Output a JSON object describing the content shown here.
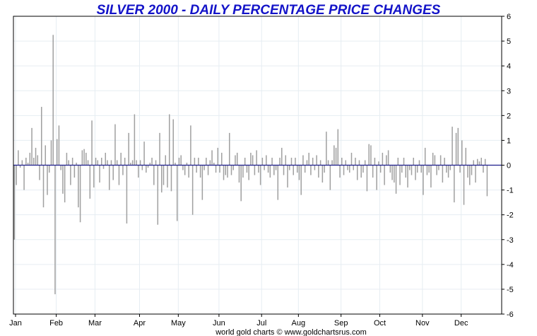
{
  "chart_data": {
    "type": "bar",
    "title": "SILVER 2000 - DAILY PERCENTAGE PRICE CHANGES",
    "credit": "world gold charts © www.goldchartsrus.com",
    "xlabel": "",
    "ylabel": "",
    "ylim": [
      -6,
      6
    ],
    "yticks": [
      6,
      5,
      4,
      3,
      2,
      1,
      0,
      -1,
      -2,
      -3,
      -4,
      -5,
      -6
    ],
    "xlim": [
      0,
      252
    ],
    "months": [
      {
        "label": "Jan",
        "start": 0
      },
      {
        "label": "Feb",
        "start": 21
      },
      {
        "label": "Mar",
        "start": 41
      },
      {
        "label": "Apr",
        "start": 64
      },
      {
        "label": "May",
        "start": 84
      },
      {
        "label": "Jun",
        "start": 105
      },
      {
        "label": "Jul",
        "start": 127
      },
      {
        "label": "Aug",
        "start": 146
      },
      {
        "label": "Sep",
        "start": 168
      },
      {
        "label": "Oct",
        "start": 188
      },
      {
        "label": "Nov",
        "start": 210
      },
      {
        "label": "Dec",
        "start": 230
      }
    ],
    "grid": true,
    "bar_color": "#a0a0a0",
    "zero_line_color": "#1c1c8c",
    "title_color": "#1414c8",
    "grid_color": "#e6edf2",
    "values": [
      -3.0,
      -0.8,
      0.6,
      -0.1,
      0.2,
      -1.0,
      0.3,
      0.1,
      0.5,
      1.5,
      0.3,
      0.7,
      0.4,
      -0.6,
      2.35,
      -1.7,
      0.8,
      -1.2,
      -0.3,
      1.0,
      5.25,
      -5.2,
      1.05,
      1.6,
      -0.2,
      -1.15,
      -1.5,
      0.5,
      0.2,
      -0.8,
      0.3,
      -0.5,
      0.1,
      -1.7,
      -2.3,
      0.6,
      0.65,
      0.5,
      0.2,
      -1.35,
      1.8,
      -0.9,
      0.3,
      0.2,
      -0.7,
      0.3,
      -0.15,
      0.5,
      0.2,
      -1.0,
      0.2,
      -0.6,
      1.65,
      0.2,
      -0.8,
      0.5,
      -0.4,
      0.3,
      -2.35,
      1.3,
      0.1,
      0.2,
      2.05,
      0.2,
      -0.5,
      0.2,
      -0.2,
      0.95,
      -0.3,
      -0.1,
      0.1,
      0.3,
      -0.8,
      0.2,
      -2.4,
      1.3,
      -1.1,
      -0.8,
      0.4,
      -0.9,
      2.05,
      -1.05,
      1.85,
      0.1,
      -2.25,
      0.3,
      0.4,
      -0.2,
      -0.4,
      0.1,
      -0.5,
      1.6,
      -2.0,
      0.3,
      -0.3,
      0.3,
      -0.5,
      -1.4,
      -0.2,
      0.3,
      -0.4,
      0.2,
      0.6,
      0.1,
      -0.3,
      0.7,
      -0.3,
      0.5,
      -0.6,
      -0.4,
      -0.5,
      1.3,
      -0.4,
      -0.2,
      0.4,
      0.5,
      -0.7,
      -1.45,
      -0.5,
      0.3,
      -0.3,
      -0.6,
      0.5,
      0.4,
      -0.4,
      0.6,
      -0.3,
      -0.8,
      0.3,
      -0.2,
      0.4,
      -0.3,
      -0.5,
      0.3,
      -0.4,
      -0.2,
      -1.4,
      0.3,
      0.7,
      -0.4,
      0.4,
      -0.9,
      -0.2,
      0.3,
      -0.4,
      0.3,
      -0.3,
      -0.6,
      -1.2,
      0.4,
      -0.3,
      0.2,
      0.5,
      -0.4,
      0.3,
      -0.2,
      0.4,
      -0.5,
      0.2,
      -0.7,
      -0.3,
      1.35,
      0.2,
      -1.0,
      0.2,
      0.8,
      0.7,
      1.45,
      -0.5,
      0.3,
      -0.4,
      0.2,
      -0.2,
      -0.3,
      0.5,
      -0.2,
      0.3,
      -0.6,
      0.2,
      -0.5,
      -0.3,
      0.2,
      -1.05,
      0.85,
      0.8,
      -0.5,
      0.3,
      -1.0,
      0.15,
      -0.3,
      0.5,
      -0.8,
      0.4,
      0.6,
      -0.3,
      -0.6,
      -0.7,
      -1.15,
      0.3,
      -0.8,
      -0.3,
      0.3,
      -0.5,
      -0.9,
      -0.2,
      -0.4,
      0.3,
      -0.6,
      -0.3,
      0.2,
      -0.3,
      -1.2,
      0.7,
      -0.4,
      -0.3,
      -0.9,
      0.5,
      0.4,
      -0.4,
      -0.2,
      0.4,
      -0.7,
      0.3,
      -0.3,
      -0.5,
      -0.2,
      1.55,
      -1.5,
      1.3,
      1.5,
      -0.3,
      1.0,
      -1.6,
      0.7,
      -0.5,
      -0.8,
      -0.4,
      0.2,
      -0.7,
      0.25,
      0.15,
      0.3,
      -0.3,
      0.25,
      -1.25
    ]
  }
}
